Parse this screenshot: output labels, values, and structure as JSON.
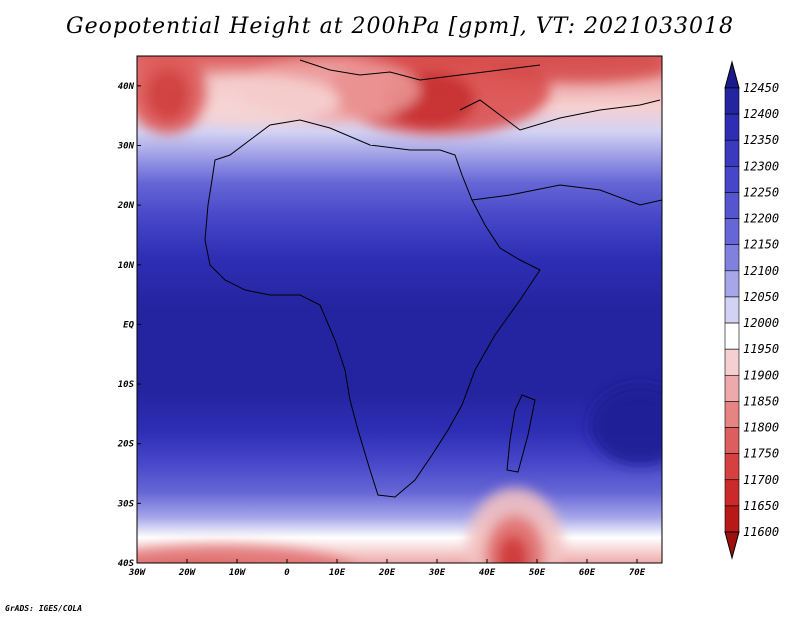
{
  "title": "Geopotential Height at 200hPa [gpm], VT: 2021033018",
  "credit": "GrADS: IGES/COLA",
  "map": {
    "lon_range": [
      -30,
      75
    ],
    "lat_range": [
      -40,
      45
    ],
    "lon_ticks": [
      "30W",
      "20W",
      "10W",
      "0",
      "10E",
      "20E",
      "30E",
      "40E",
      "50E",
      "60E",
      "70E"
    ],
    "lat_ticks": [
      "40N",
      "30N",
      "20N",
      "10N",
      "EQ",
      "10S",
      "20S",
      "30S",
      "40S"
    ]
  },
  "colorbar": {
    "levels": [
      "12450",
      "12400",
      "12350",
      "12300",
      "12250",
      "12200",
      "12150",
      "12100",
      "12050",
      "12000",
      "11950",
      "11900",
      "11850",
      "11800",
      "11750",
      "11700",
      "11650",
      "11600"
    ],
    "colors": [
      "#1a1a8c",
      "#2424a0",
      "#2e2eb4",
      "#3a3abf",
      "#4646c8",
      "#5555cf",
      "#6666d6",
      "#8080df",
      "#a6a6e9",
      "#d2d2f4",
      "#ffffff",
      "#f6d0d0",
      "#eeaaaa",
      "#e68484",
      "#dd5e5e",
      "#d64040",
      "#cc2a2a",
      "#b81818",
      "#9e1010"
    ]
  },
  "chart_data": {
    "type": "heatmap",
    "variable": "Geopotential Height at 200hPa",
    "units": "gpm",
    "valid_time": "2021033018",
    "value_range": [
      11600,
      12450
    ],
    "features": [
      {
        "region": "Mediterranean / Turkey (~38N, 20E-50E)",
        "value_approx": 11700
      },
      {
        "region": "NE Atlantic (~40N, 28W)",
        "value_approx": 11700
      },
      {
        "region": "South of Madagascar (~38S, 45E)",
        "value_approx": 11650
      },
      {
        "region": "SW corner (~40S, 30W-0)",
        "value_approx": 11800
      },
      {
        "region": "Tropics (20S-15N)",
        "value_approx": 12400
      },
      {
        "region": "Indian Ocean (~17S, 70E)",
        "value_approx": 12430
      }
    ]
  }
}
